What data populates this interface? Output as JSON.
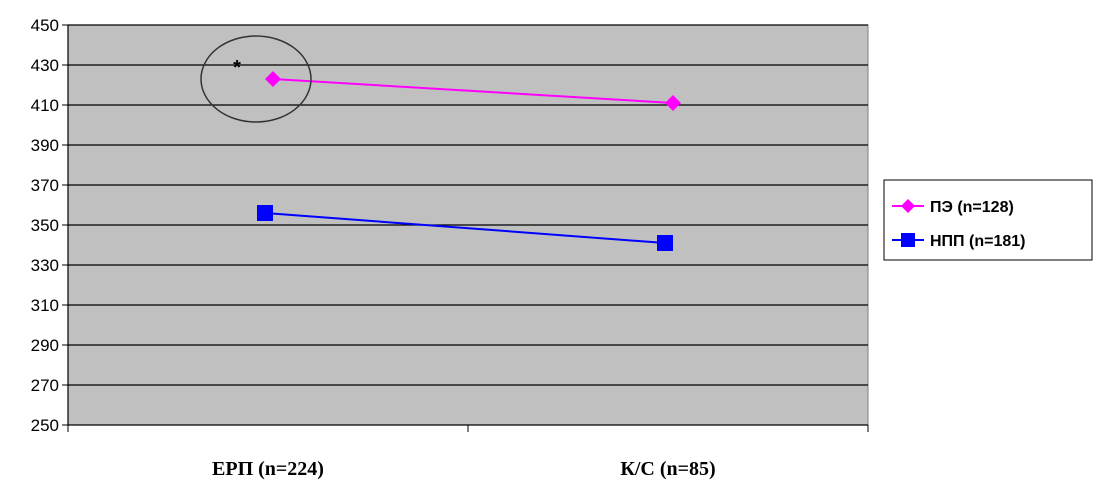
{
  "chart_data": {
    "type": "line",
    "title": "",
    "xlabel": "",
    "ylabel": "",
    "categories": [
      "ЕРП (n=224)",
      "К/С (n=85)"
    ],
    "ylim": [
      250,
      450
    ],
    "yticks": [
      250,
      270,
      290,
      310,
      330,
      350,
      370,
      390,
      410,
      430,
      450
    ],
    "grid": true,
    "legend_position": "right",
    "plot_background": "#c0c0c0",
    "series": [
      {
        "name": "ПЭ (n=128)",
        "values": [
          423,
          411
        ],
        "color": "#ff00ff",
        "marker": "diamond"
      },
      {
        "name": "НПП (n=181)",
        "values": [
          356,
          341
        ],
        "color": "#0000ff",
        "marker": "square"
      }
    ],
    "annotations": [
      {
        "text": "*",
        "category": 0,
        "y": 429,
        "shape": "ellipse"
      }
    ]
  }
}
